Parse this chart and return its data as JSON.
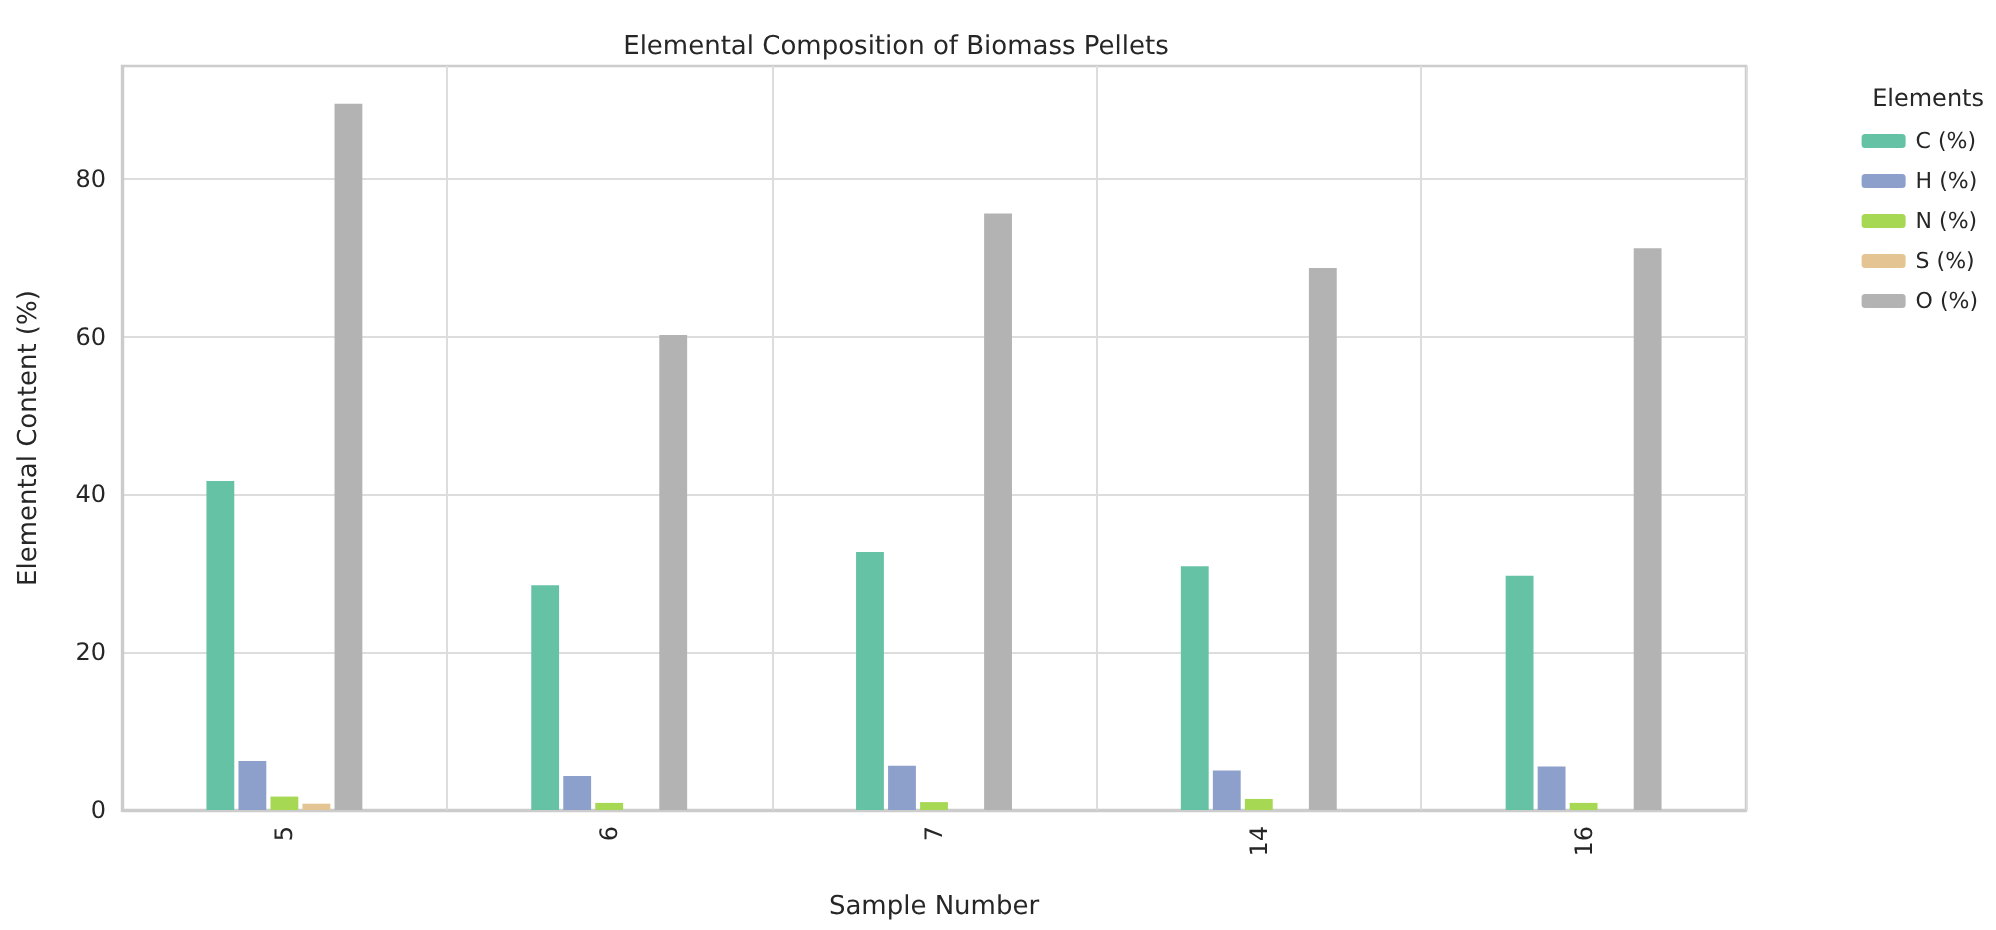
{
  "chart_data": {
    "type": "bar",
    "title": "Elemental Composition of Biomass Pellets",
    "xlabel": "Sample Number",
    "ylabel": "Elemental Content (%)",
    "legend_title": "Elements",
    "categories": [
      "5",
      "6",
      "7",
      "14",
      "16"
    ],
    "series": [
      {
        "name": "C (%)",
        "color": "#66c2a5",
        "values": [
          41.7,
          28.5,
          32.7,
          30.9,
          29.7
        ]
      },
      {
        "name": "H (%)",
        "color": "#8da0cb",
        "values": [
          6.2,
          4.3,
          5.6,
          5.0,
          5.5
        ]
      },
      {
        "name": "N (%)",
        "color": "#a6d854",
        "values": [
          1.7,
          0.9,
          1.0,
          1.4,
          0.9
        ]
      },
      {
        "name": "S (%)",
        "color": "#e5c494",
        "values": [
          0.8,
          null,
          null,
          null,
          null
        ]
      },
      {
        "name": "O (%)",
        "color": "#b3b3b3",
        "values": [
          89.5,
          60.2,
          75.6,
          68.7,
          71.2
        ]
      }
    ],
    "ylim": [
      0,
      94.3
    ],
    "yticks": [
      0,
      20,
      40,
      60,
      80
    ],
    "grid": true,
    "legend": "top right"
  }
}
